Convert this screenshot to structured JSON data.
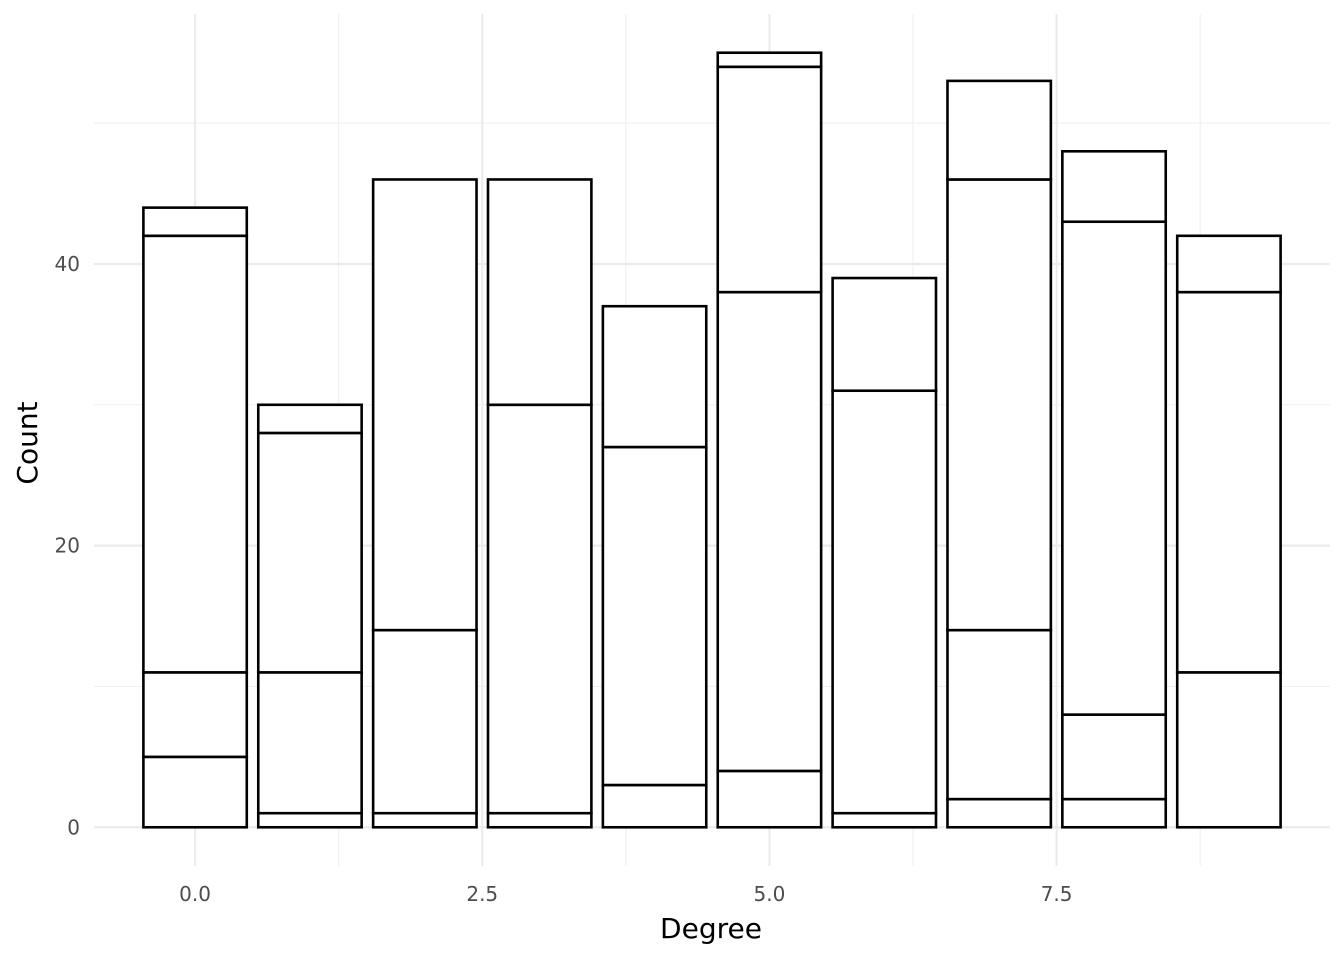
{
  "chart_data": {
    "type": "bar",
    "stacked": true,
    "title": "",
    "xlabel": "Degree",
    "ylabel": "Count",
    "xlim": [
      -0.88,
      9.88
    ],
    "ylim": [
      -2.75,
      57.75
    ],
    "x_ticks": [
      {
        "value": 0,
        "label": "0.0"
      },
      {
        "value": 2.5,
        "label": "2.5"
      },
      {
        "value": 5,
        "label": "5.0"
      },
      {
        "value": 7.5,
        "label": "7.5"
      }
    ],
    "x_minor_ticks": [
      1.25,
      3.75,
      6.25,
      8.75
    ],
    "y_ticks": [
      {
        "value": 0,
        "label": "0"
      },
      {
        "value": 20,
        "label": "20"
      },
      {
        "value": 40,
        "label": "40"
      }
    ],
    "y_minor_ticks": [
      10,
      30,
      50
    ],
    "grid": true,
    "bar_fill": "#ffffff",
    "bar_outline": "#000000",
    "bars": [
      {
        "x": 0,
        "boundaries": [
          0,
          5,
          11,
          42,
          44
        ]
      },
      {
        "x": 1,
        "boundaries": [
          0,
          1,
          11,
          28,
          30
        ]
      },
      {
        "x": 2,
        "boundaries": [
          0,
          1,
          14,
          46
        ]
      },
      {
        "x": 3,
        "boundaries": [
          0,
          1,
          30,
          46
        ]
      },
      {
        "x": 4,
        "boundaries": [
          0,
          3,
          27,
          37
        ]
      },
      {
        "x": 5,
        "boundaries": [
          0,
          4,
          38,
          54,
          55
        ]
      },
      {
        "x": 6,
        "boundaries": [
          0,
          1,
          31,
          39
        ]
      },
      {
        "x": 7,
        "boundaries": [
          0,
          2,
          14,
          46,
          53
        ]
      },
      {
        "x": 8,
        "boundaries": [
          0,
          2,
          8,
          43,
          48
        ]
      },
      {
        "x": 9,
        "boundaries": [
          0,
          11,
          38,
          42
        ]
      }
    ]
  }
}
